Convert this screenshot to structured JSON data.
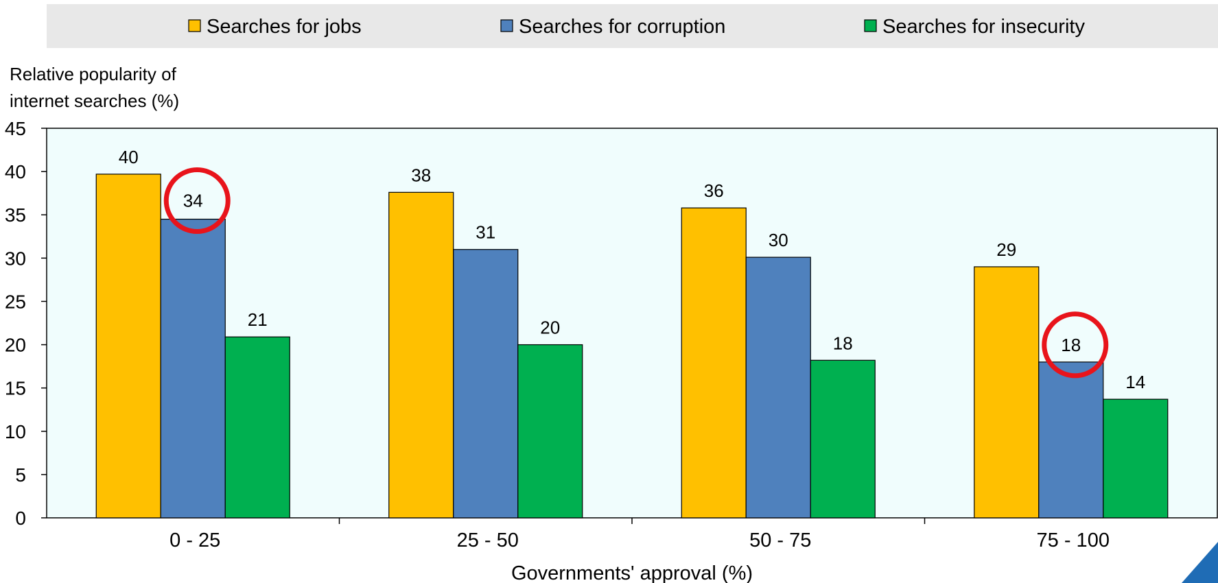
{
  "chart_data": {
    "type": "bar",
    "categories": [
      "0 - 25",
      "25 - 50",
      "50 - 75",
      "75 - 100"
    ],
    "series": [
      {
        "name": "Searches for jobs",
        "values": [
          39.7,
          37.6,
          35.8,
          29.0
        ],
        "labels": [
          "40",
          "38",
          "36",
          "29"
        ],
        "color": "#FFC000"
      },
      {
        "name": "Searches for corruption",
        "values": [
          34.5,
          31.0,
          30.1,
          18.0
        ],
        "labels": [
          "34",
          "31",
          "30",
          "18"
        ],
        "color": "#4F81BD"
      },
      {
        "name": "Searches for insecurity",
        "values": [
          20.9,
          20.0,
          18.2,
          13.7
        ],
        "labels": [
          "21",
          "20",
          "18",
          "14"
        ],
        "color": "#00B050"
      }
    ],
    "title": "",
    "ylabel_lines": [
      "Relative popularity of",
      "internet searches (%)"
    ],
    "xlabel": "Governments' approval (%)",
    "ylim": [
      0,
      45
    ],
    "yticks": [
      "0",
      "5",
      "10",
      "15",
      "20",
      "25",
      "30",
      "35",
      "40",
      "45"
    ],
    "grid": false,
    "legend_position": "top",
    "plot_background": "#F0FDFD",
    "legend_background": "#E8E8E8",
    "highlights": [
      {
        "category": "0 - 25",
        "series": "Searches for corruption",
        "shape": "circle",
        "color": "#E8141B"
      },
      {
        "category": "75 - 100",
        "series": "Searches for corruption",
        "shape": "circle",
        "color": "#E8141B"
      }
    ],
    "corner_decoration_color": "#1F6CB5"
  }
}
